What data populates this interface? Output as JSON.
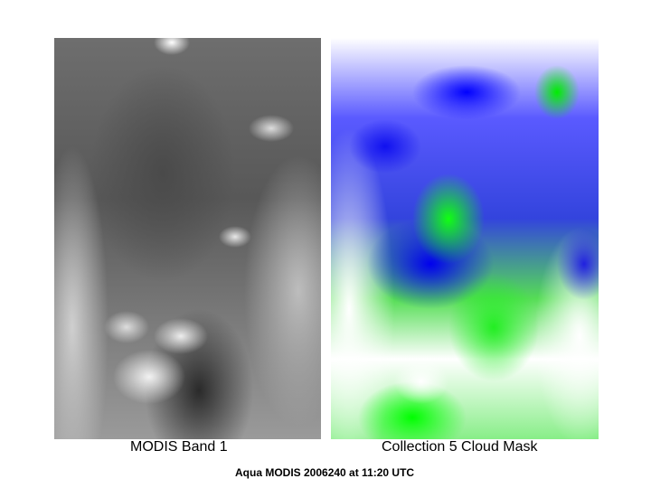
{
  "panels": [
    {
      "caption": "MODIS Band 1"
    },
    {
      "caption": "Collection 5 Cloud Mask",
      "colors": [
        "#0000ff",
        "#00ff00",
        "#ff0000",
        "#ffffff"
      ]
    }
  ],
  "footer": "Aqua MODIS 2006240 at 11:20 UTC"
}
